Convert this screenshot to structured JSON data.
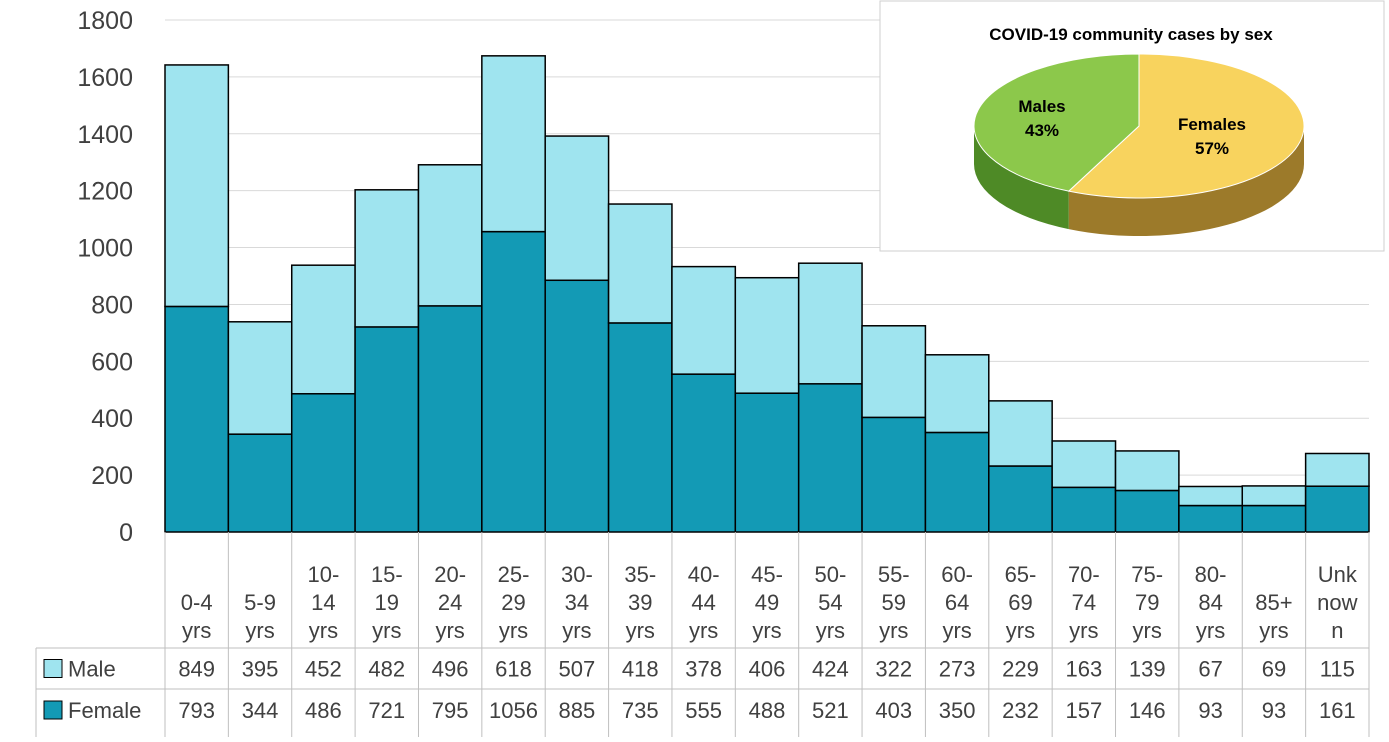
{
  "chart_data": [
    {
      "type": "bar",
      "stacked": true,
      "categories": [
        "0-4 yrs",
        "5-9 yrs",
        "10-14 yrs",
        "15-19 yrs",
        "20-24 yrs",
        "25-29 yrs",
        "30-34 yrs",
        "35-39 yrs",
        "40-44 yrs",
        "45-49 yrs",
        "50-54 yrs",
        "55-59 yrs",
        "60-64 yrs",
        "65-69 yrs",
        "70-74 yrs",
        "75-79 yrs",
        "80-84 yrs",
        "85+ yrs",
        "Unknown"
      ],
      "category_labels": [
        [
          "0-4",
          "yrs"
        ],
        [
          "5-9",
          "yrs"
        ],
        [
          "10-",
          "14",
          "yrs"
        ],
        [
          "15-",
          "19",
          "yrs"
        ],
        [
          "20-",
          "24",
          "yrs"
        ],
        [
          "25-",
          "29",
          "yrs"
        ],
        [
          "30-",
          "34",
          "yrs"
        ],
        [
          "35-",
          "39",
          "yrs"
        ],
        [
          "40-",
          "44",
          "yrs"
        ],
        [
          "45-",
          "49",
          "yrs"
        ],
        [
          "50-",
          "54",
          "yrs"
        ],
        [
          "55-",
          "59",
          "yrs"
        ],
        [
          "60-",
          "64",
          "yrs"
        ],
        [
          "65-",
          "69",
          "yrs"
        ],
        [
          "70-",
          "74",
          "yrs"
        ],
        [
          "75-",
          "79",
          "yrs"
        ],
        [
          "80-",
          "84",
          "yrs"
        ],
        [
          "85+",
          "yrs"
        ],
        [
          "Unk",
          "now",
          "n"
        ]
      ],
      "series": [
        {
          "name": "Female",
          "color": "#139ab5",
          "values": [
            793,
            344,
            486,
            721,
            795,
            1056,
            885,
            735,
            555,
            488,
            521,
            403,
            350,
            232,
            157,
            146,
            93,
            93,
            161
          ]
        },
        {
          "name": "Male",
          "color": "#9fe4ef",
          "values": [
            849,
            395,
            452,
            482,
            496,
            618,
            507,
            418,
            378,
            406,
            424,
            322,
            273,
            229,
            163,
            139,
            67,
            69,
            115
          ]
        }
      ],
      "table_rows": [
        "Male",
        "Female"
      ],
      "ylim": [
        0,
        1800
      ],
      "yticks": [
        0,
        200,
        400,
        600,
        800,
        1000,
        1200,
        1400,
        1600,
        1800
      ],
      "grid": true,
      "legend": "data table"
    },
    {
      "type": "pie",
      "title": "COVID-19 community cases by sex",
      "slices": [
        {
          "label": "Males",
          "pct_label": "43%",
          "value": 43,
          "color": "#8cc84b"
        },
        {
          "label": "Females",
          "pct_label": "57%",
          "value": 57,
          "color": "#f8d35e"
        }
      ]
    }
  ]
}
